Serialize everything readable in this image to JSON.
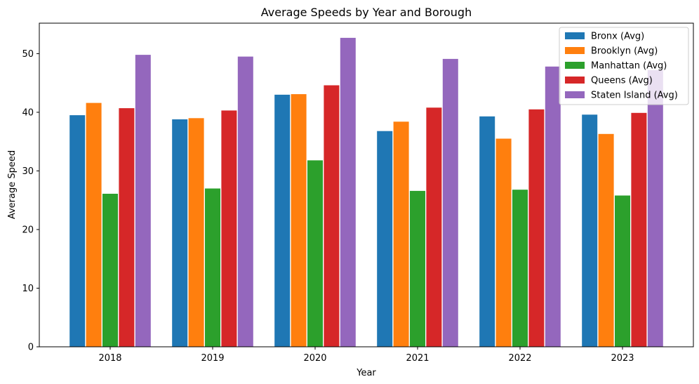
{
  "chart_data": {
    "type": "bar",
    "title": "Average Speeds by Year and Borough",
    "xlabel": "Year",
    "ylabel": "Average Speed",
    "categories": [
      "2018",
      "2019",
      "2020",
      "2021",
      "2022",
      "2023"
    ],
    "ylim": [
      0,
      55.2
    ],
    "yticks": [
      0,
      10,
      20,
      30,
      40,
      50
    ],
    "grid": false,
    "legend_position": "top-right",
    "series": [
      {
        "name": "Bronx (Avg)",
        "color": "#1f77b4",
        "values": [
          39.5,
          38.8,
          43.0,
          36.8,
          39.3,
          39.6
        ]
      },
      {
        "name": "Brooklyn (Avg)",
        "color": "#ff7f0e",
        "values": [
          41.6,
          39.0,
          43.1,
          38.4,
          35.5,
          36.3
        ]
      },
      {
        "name": "Manhattan (Avg)",
        "color": "#2ca02c",
        "values": [
          26.1,
          27.0,
          31.8,
          26.6,
          26.8,
          25.8
        ]
      },
      {
        "name": "Queens (Avg)",
        "color": "#d62728",
        "values": [
          40.7,
          40.3,
          44.6,
          40.8,
          40.5,
          39.9
        ]
      },
      {
        "name": "Staten Island (Avg)",
        "color": "#9467bd",
        "values": [
          49.8,
          49.5,
          52.7,
          49.1,
          47.8,
          47.2
        ]
      }
    ]
  }
}
